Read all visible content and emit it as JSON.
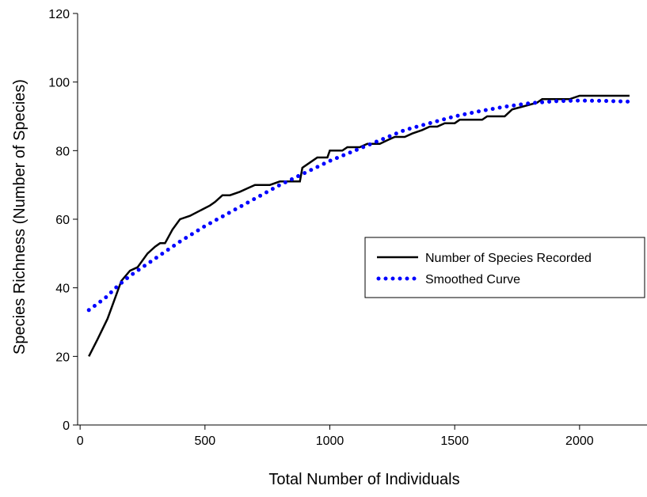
{
  "chart_data": {
    "type": "line",
    "title": "",
    "xlabel": "Total Number of Individuals",
    "ylabel": "Species Richness (Number of Species)",
    "xlim": [
      -10,
      2270
    ],
    "ylim": [
      0,
      120
    ],
    "xticks": [
      0,
      500,
      1000,
      1500,
      2000
    ],
    "yticks": [
      0,
      20,
      40,
      60,
      80,
      100,
      120
    ],
    "grid": false,
    "legend_position": "right",
    "series": [
      {
        "name": "Number of Species Recorded",
        "color": "#000000",
        "style": "solid",
        "points": [
          [
            35,
            20
          ],
          [
            70,
            25
          ],
          [
            110,
            31
          ],
          [
            140,
            37
          ],
          [
            165,
            42
          ],
          [
            200,
            45
          ],
          [
            230,
            46
          ],
          [
            270,
            50
          ],
          [
            300,
            52
          ],
          [
            320,
            53
          ],
          [
            340,
            53
          ],
          [
            370,
            57
          ],
          [
            400,
            60
          ],
          [
            440,
            61
          ],
          [
            480,
            62.5
          ],
          [
            520,
            64
          ],
          [
            540,
            65
          ],
          [
            570,
            67
          ],
          [
            600,
            67
          ],
          [
            640,
            68
          ],
          [
            670,
            69
          ],
          [
            700,
            70
          ],
          [
            760,
            70
          ],
          [
            800,
            71
          ],
          [
            880,
            71
          ],
          [
            890,
            75
          ],
          [
            930,
            77
          ],
          [
            950,
            78
          ],
          [
            990,
            78
          ],
          [
            1000,
            80
          ],
          [
            1050,
            80
          ],
          [
            1070,
            81
          ],
          [
            1120,
            81
          ],
          [
            1150,
            82
          ],
          [
            1200,
            82
          ],
          [
            1230,
            83
          ],
          [
            1260,
            84
          ],
          [
            1300,
            84
          ],
          [
            1330,
            85
          ],
          [
            1370,
            86
          ],
          [
            1400,
            87
          ],
          [
            1430,
            87
          ],
          [
            1460,
            88
          ],
          [
            1500,
            88
          ],
          [
            1520,
            89
          ],
          [
            1580,
            89
          ],
          [
            1610,
            89
          ],
          [
            1630,
            90
          ],
          [
            1700,
            90
          ],
          [
            1730,
            92
          ],
          [
            1780,
            93
          ],
          [
            1830,
            94
          ],
          [
            1850,
            95
          ],
          [
            1960,
            95
          ],
          [
            2000,
            96
          ],
          [
            2200,
            96
          ]
        ]
      },
      {
        "name": "Smoothed Curve",
        "color": "#0000FF",
        "style": "dotted",
        "points": [
          [
            35,
            33.5
          ],
          [
            100,
            37
          ],
          [
            150,
            40.5
          ],
          [
            200,
            43.5
          ],
          [
            300,
            48.5
          ],
          [
            400,
            53.5
          ],
          [
            500,
            58
          ],
          [
            600,
            62
          ],
          [
            700,
            66
          ],
          [
            800,
            70
          ],
          [
            900,
            73.5
          ],
          [
            1000,
            77
          ],
          [
            1100,
            80
          ],
          [
            1200,
            83
          ],
          [
            1300,
            86
          ],
          [
            1400,
            88
          ],
          [
            1500,
            90
          ],
          [
            1600,
            91.5
          ],
          [
            1700,
            92.8
          ],
          [
            1800,
            93.8
          ],
          [
            1900,
            94.4
          ],
          [
            2000,
            94.6
          ],
          [
            2100,
            94.5
          ],
          [
            2200,
            94.3
          ]
        ]
      }
    ]
  }
}
